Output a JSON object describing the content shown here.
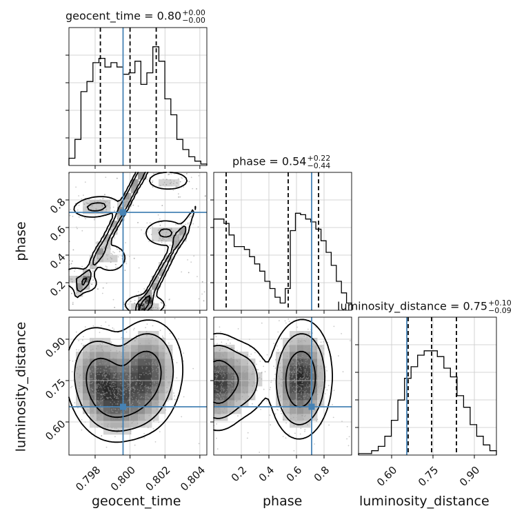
{
  "chart_data": {
    "type": "corner",
    "parameters": [
      {
        "name": "geocent_time",
        "title_name": "geocent_time",
        "median": "0.80",
        "plus": "+0.00",
        "minus": "−0.00",
        "range": [
          0.7965,
          0.8044
        ],
        "ticks": [
          "0.798",
          "0.800",
          "0.802",
          "0.804"
        ],
        "tick_values": [
          0.798,
          0.8,
          0.802,
          0.804
        ],
        "truth": 0.7996,
        "quantiles": [
          0.7983,
          0.8,
          0.8015
        ],
        "hist_counts": [
          0.05,
          0.18,
          0.51,
          0.58,
          0.71,
          0.74,
          0.68,
          0.71,
          0.68,
          0.63,
          0.64,
          0.72,
          0.56,
          0.64,
          0.82,
          0.72,
          0.46,
          0.35,
          0.18,
          0.11,
          0.06,
          0.03,
          0.01
        ]
      },
      {
        "name": "phase",
        "title_name": "phase",
        "median": "0.54",
        "plus": "+0.22",
        "minus": "−0.44",
        "range": [
          0.0,
          1.0
        ],
        "ticks": [
          "0.2",
          "0.4",
          "0.6",
          "0.8"
        ],
        "tick_values": [
          0.2,
          0.4,
          0.6,
          0.8
        ],
        "truth": 0.71,
        "quantiles": [
          0.09,
          0.54,
          0.76
        ],
        "hist_counts": [
          0.63,
          0.63,
          0.6,
          0.52,
          0.44,
          0.44,
          0.42,
          0.37,
          0.32,
          0.27,
          0.2,
          0.15,
          0.09,
          0.05,
          0.15,
          0.55,
          0.67,
          0.66,
          0.63,
          0.61,
          0.56,
          0.48,
          0.4,
          0.31,
          0.2,
          0.12,
          0.05
        ]
      },
      {
        "name": "luminosity_distance",
        "title_name": "luminosity_distance",
        "median": "0.75",
        "plus": "+0.10",
        "minus": "−0.09",
        "range": [
          0.48,
          0.98
        ],
        "ticks": [
          "0.60",
          "0.75",
          "0.90"
        ],
        "tick_values": [
          0.6,
          0.75,
          0.9
        ],
        "truth": 0.655,
        "quantiles": [
          0.66,
          0.745,
          0.835
        ],
        "hist_counts": [
          0.01,
          0.01,
          0.03,
          0.06,
          0.13,
          0.24,
          0.38,
          0.53,
          0.61,
          0.69,
          0.72,
          0.72,
          0.68,
          0.6,
          0.54,
          0.41,
          0.33,
          0.21,
          0.13,
          0.07,
          0.03
        ]
      }
    ],
    "truth_color": "#4682b4",
    "contour_levels": [
      0.5,
      0.86,
      0.98
    ]
  }
}
